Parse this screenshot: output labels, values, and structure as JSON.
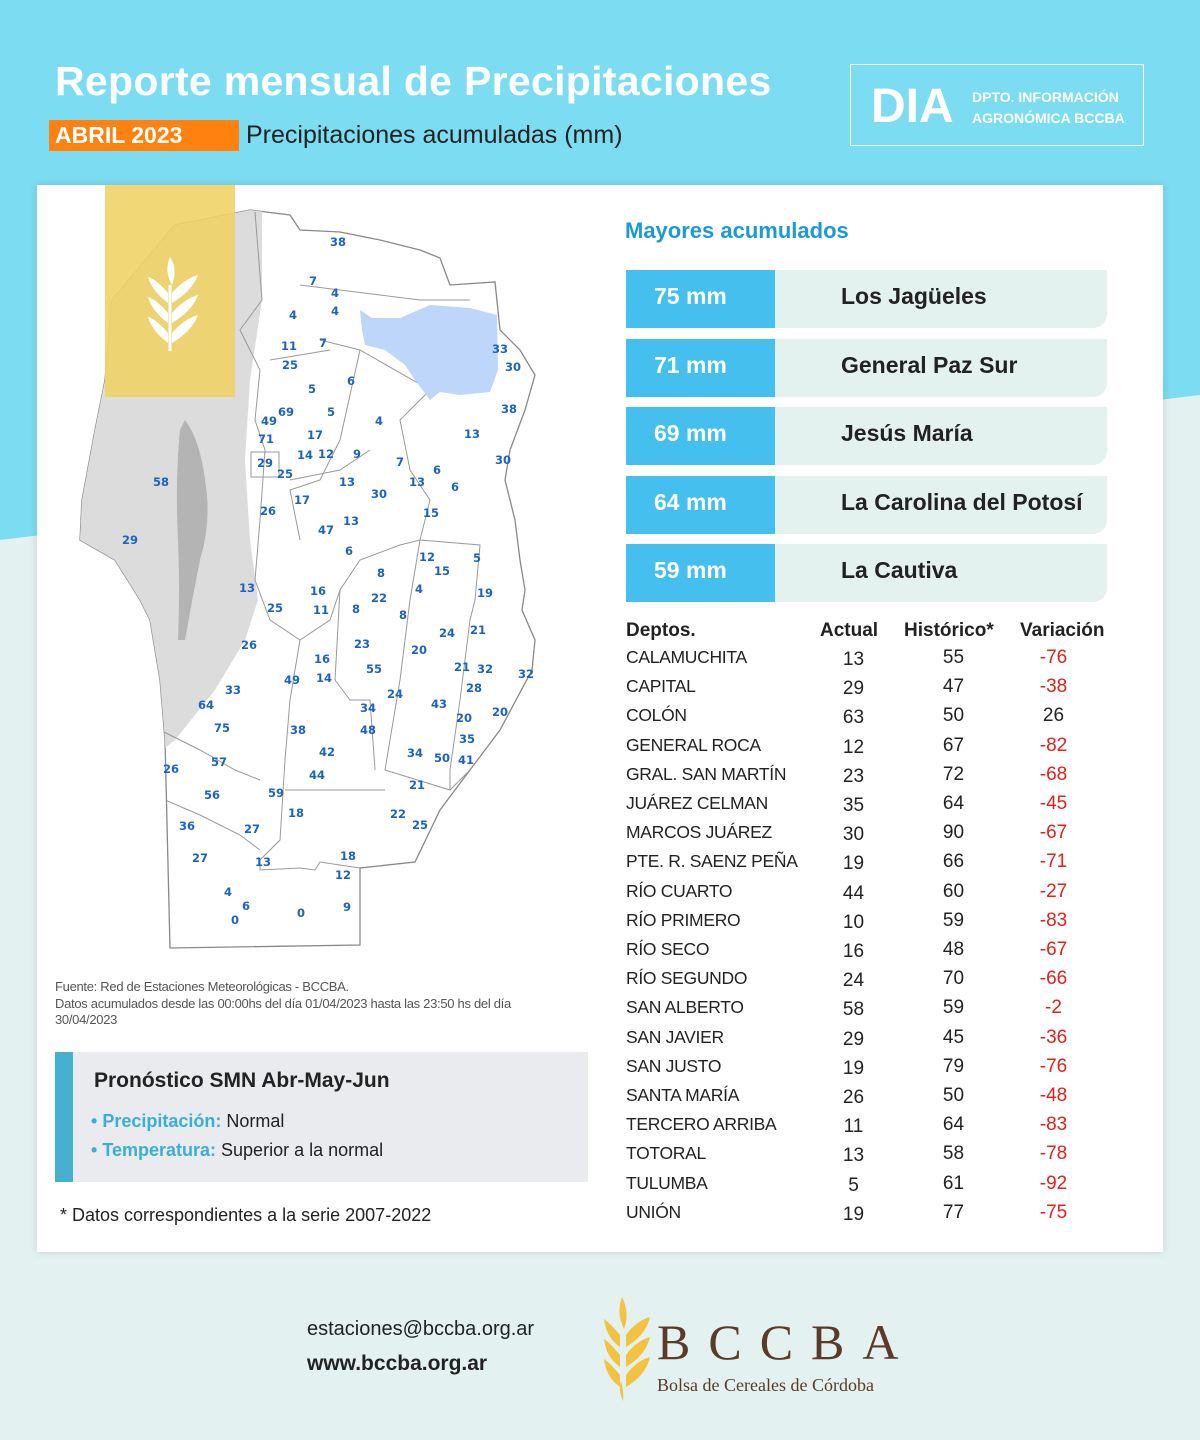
{
  "header": {
    "title": "Reporte mensual de Precipitaciones",
    "month": "ABRIL 2023",
    "subtitle": "Precipitaciones acumuladas (mm)",
    "dia_logo": "DIA",
    "dia_line1": "DPTO. INFORMACIÓN",
    "dia_line2": "AGRONÓMICA BCCBA"
  },
  "map": {
    "stations": [
      38,
      7,
      4,
      4,
      4,
      11,
      7,
      25,
      33,
      30,
      5,
      6,
      69,
      5,
      38,
      49,
      4,
      17,
      13,
      71,
      14,
      12,
      9,
      30,
      29,
      25,
      7,
      6,
      13,
      13,
      6,
      58,
      30,
      17,
      26,
      15,
      13,
      47,
      29,
      6,
      12,
      5,
      8,
      15,
      13,
      16,
      4,
      22,
      19,
      25,
      11,
      8,
      8,
      24,
      21,
      26,
      23,
      20,
      16,
      55,
      21,
      32,
      32,
      49,
      14,
      28,
      33,
      24,
      43,
      64,
      34,
      20,
      20,
      75,
      38,
      48,
      35,
      42,
      34,
      50,
      41,
      26,
      57,
      44,
      21,
      56,
      59,
      18,
      22,
      25,
      36,
      27,
      18,
      27,
      13,
      12,
      4,
      6,
      0,
      0,
      9
    ],
    "colors": {
      "label": "#1a63c2",
      "lake": "#bfd6fb",
      "relief": "#dcdcdc",
      "overlay": "#f0d264"
    }
  },
  "source": {
    "line1": "Fuente: Red de Estaciones Meteorológicas - BCCBA.",
    "line2": "Datos acumulados desde las 00:00hs del día 01/04/2023 hasta las 23:50 hs del día 30/04/2023"
  },
  "forecast": {
    "title": "Pronóstico SMN Abr-May-Jun",
    "items": [
      {
        "key": "Precipitación:",
        "value": "Normal"
      },
      {
        "key": "Temperatura:",
        "value": "Superior a la normal"
      }
    ]
  },
  "note": "* Datos correspondientes a la serie 2007-2022",
  "top": {
    "title": "Mayores acumulados",
    "rows": [
      {
        "mm": "75 mm",
        "name": "Los Jagüeles"
      },
      {
        "mm": "71 mm",
        "name": "General Paz Sur"
      },
      {
        "mm": "69 mm",
        "name": "Jesús María"
      },
      {
        "mm": "64 mm",
        "name": "La Carolina del Potosí"
      },
      {
        "mm": "59 mm",
        "name": "La Cautiva"
      }
    ]
  },
  "table": {
    "headers": [
      "Deptos.",
      "Actual",
      "Histórico*",
      "Variación"
    ],
    "rows": [
      [
        "CALAMUCHITA",
        "13",
        "55",
        "-76"
      ],
      [
        "CAPITAL",
        "29",
        "47",
        "-38"
      ],
      [
        "COLÓN",
        "63",
        "50",
        "26"
      ],
      [
        "GENERAL ROCA",
        "12",
        "67",
        "-82"
      ],
      [
        "GRAL. SAN MARTÍN",
        "23",
        "72",
        "-68"
      ],
      [
        "JUÁREZ CELMAN",
        "35",
        "64",
        "-45"
      ],
      [
        "MARCOS JUÁREZ",
        "30",
        "90",
        "-67"
      ],
      [
        "PTE. R. SAENZ PEÑA",
        "19",
        "66",
        "-71"
      ],
      [
        "RÍO CUARTO",
        "44",
        "60",
        "-27"
      ],
      [
        "RÍO PRIMERO",
        "10",
        "59",
        "-83"
      ],
      [
        "RÍO SECO",
        "16",
        "48",
        "-67"
      ],
      [
        "RÍO SEGUNDO",
        "24",
        "70",
        "-66"
      ],
      [
        "SAN ALBERTO",
        "58",
        "59",
        "-2"
      ],
      [
        "SAN JAVIER",
        "29",
        "45",
        "-36"
      ],
      [
        "SAN JUSTO",
        "19",
        "79",
        "-76"
      ],
      [
        "SANTA MARÍA",
        "26",
        "50",
        "-48"
      ],
      [
        "TERCERO ARRIBA",
        "11",
        "64",
        "-83"
      ],
      [
        "TOTORAL",
        "13",
        "58",
        "-78"
      ],
      [
        "TULUMBA",
        "5",
        "61",
        "-92"
      ],
      [
        "UNIÓN",
        "19",
        "77",
        "-75"
      ]
    ]
  },
  "footer": {
    "email": "estaciones@bccba.org.ar",
    "web": "www.bccba.org.ar",
    "logo_text": "BCCBA",
    "logo_sub": "Bolsa de Cereales de Córdoba"
  },
  "colors": {
    "cyan": "#7cdcf2",
    "orange": "#ff8210",
    "blue_box": "#44bfee",
    "negative": "#e3201b"
  }
}
